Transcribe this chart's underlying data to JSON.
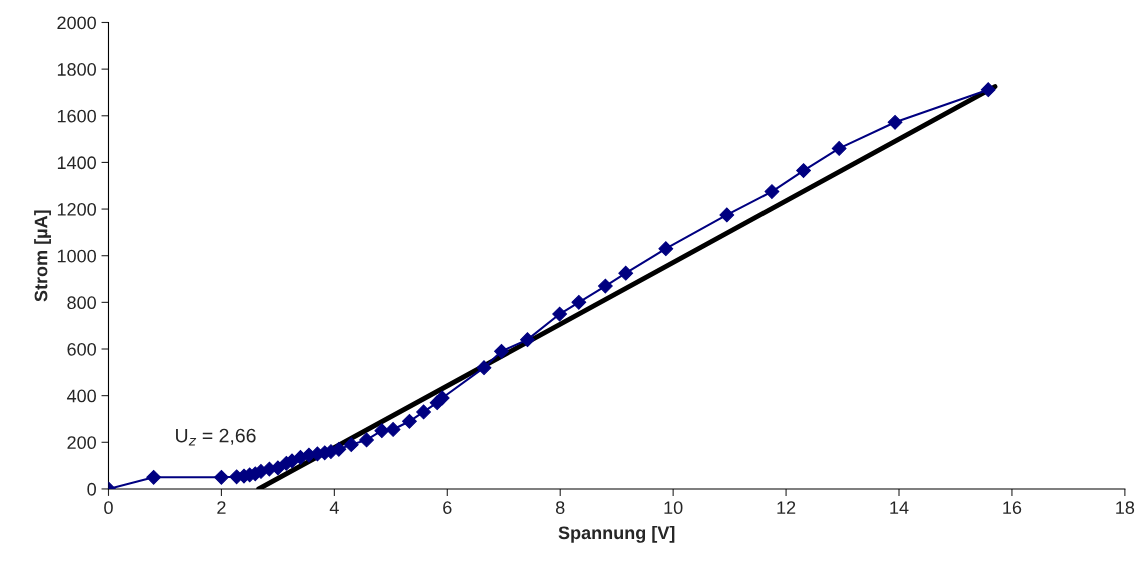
{
  "chart_data": {
    "type": "line",
    "xlabel": "Spannung [V]",
    "ylabel": "Strom [µA]",
    "xlim": [
      0,
      18
    ],
    "xticks": [
      0,
      2,
      4,
      6,
      8,
      10,
      12,
      14,
      16,
      18
    ],
    "ylim": [
      0,
      2000
    ],
    "yticks": [
      0,
      200,
      400,
      600,
      800,
      1000,
      1200,
      1400,
      1600,
      1800,
      2000
    ],
    "grid": false,
    "legend": false,
    "annotations": [
      "U$_{z}$ = 2,66"
    ],
    "series": [
      {
        "color": "#000080",
        "marker": "diamond",
        "line_style": "solid",
        "x": [
          0,
          0.8,
          2.0,
          2.27,
          2.4,
          2.5,
          2.6,
          2.7,
          2.85,
          3.0,
          3.15,
          3.25,
          3.4,
          3.55,
          3.7,
          3.83,
          3.94,
          4.08,
          4.3,
          4.57,
          4.84,
          5.04,
          5.33,
          5.58,
          5.82,
          5.91,
          6.65,
          6.96,
          7.42,
          7.99,
          8.33,
          8.8,
          9.16,
          9.87,
          10.95,
          11.75,
          12.31,
          12.94,
          13.93,
          15.58
        ],
        "values": [
          0,
          50,
          50,
          52,
          55,
          60,
          65,
          75,
          85,
          90,
          110,
          120,
          135,
          145,
          150,
          155,
          160,
          170,
          190,
          210,
          250,
          255,
          290,
          330,
          370,
          390,
          520,
          590,
          640,
          750,
          800,
          870,
          925,
          1030,
          1175,
          1275,
          1365,
          1460,
          1572,
          1712
        ]
      },
      {
        "color": "#000000",
        "marker": "none",
        "line_style": "solid",
        "x": [
          2.66,
          15.7
        ],
        "values": [
          0,
          1725
        ]
      }
    ]
  }
}
